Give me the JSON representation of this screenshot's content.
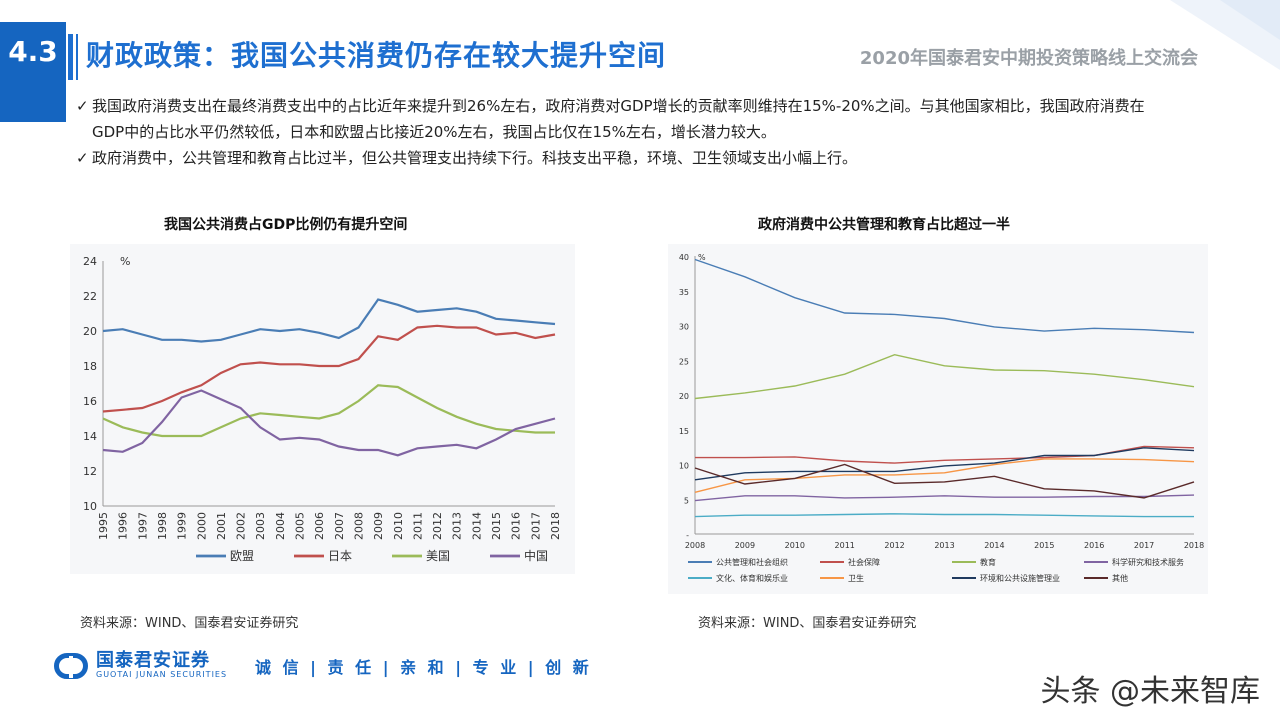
{
  "header": {
    "section_number": "4.3",
    "title": "财政政策：我国公共消费仍存在较大提升空间",
    "event": "2020年国泰君安中期投资策略线上交流会"
  },
  "bullets": [
    {
      "mark": "✓",
      "text": "我国政府消费支出在最终消费支出中的占比近年来提升到26%左右，政府消费对GDP增长的贡献率则维持在15%-20%之间。与其他国家相比，我国政府消费在GDP中的占比水平仍然较低，日本和欧盟占比接近20%左右，我国占比仅在15%左右，增长潜力较大。"
    },
    {
      "mark": "✓",
      "text": "政府消费中，公共管理和教育占比过半，但公共管理支出持续下行。科技支出平稳，环境、卫生领域支出小幅上行。"
    }
  ],
  "chart_data": [
    {
      "type": "line",
      "title": "我国公共消费占GDP比例仍有提升空间",
      "unit": "%",
      "x": [
        "1995",
        "1996",
        "1997",
        "1998",
        "1999",
        "2000",
        "2001",
        "2002",
        "2003",
        "2004",
        "2005",
        "2006",
        "2007",
        "2008",
        "2009",
        "2010",
        "2011",
        "2012",
        "2013",
        "2014",
        "2015",
        "2016",
        "2017",
        "2018"
      ],
      "ylim": [
        10,
        24
      ],
      "yticks": [
        10,
        12,
        14,
        16,
        18,
        20,
        22,
        24
      ],
      "legend_position": "bottom",
      "series": [
        {
          "name": "欧盟",
          "color": "#4a7db5",
          "values": [
            20.0,
            20.1,
            19.8,
            19.5,
            19.5,
            19.4,
            19.5,
            19.8,
            20.1,
            20.0,
            20.1,
            19.9,
            19.6,
            20.2,
            21.8,
            21.5,
            21.1,
            21.2,
            21.3,
            21.1,
            20.7,
            20.6,
            20.5,
            20.4
          ]
        },
        {
          "name": "日本",
          "color": "#c0504d",
          "values": [
            15.4,
            15.5,
            15.6,
            16.0,
            16.5,
            16.9,
            17.6,
            18.1,
            18.2,
            18.1,
            18.1,
            18.0,
            18.0,
            18.4,
            19.7,
            19.5,
            20.2,
            20.3,
            20.2,
            20.2,
            19.8,
            19.9,
            19.6,
            19.8
          ]
        },
        {
          "name": "美国",
          "color": "#9bbb59",
          "values": [
            15.0,
            14.5,
            14.2,
            14.0,
            14.0,
            14.0,
            14.5,
            15.0,
            15.3,
            15.2,
            15.1,
            15.0,
            15.3,
            16.0,
            16.9,
            16.8,
            16.2,
            15.6,
            15.1,
            14.7,
            14.4,
            14.3,
            14.2,
            14.2
          ]
        },
        {
          "name": "中国",
          "color": "#8064a2",
          "values": [
            13.2,
            13.1,
            13.6,
            14.8,
            16.2,
            16.6,
            16.1,
            15.6,
            14.5,
            13.8,
            13.9,
            13.8,
            13.4,
            13.2,
            13.2,
            12.9,
            13.3,
            13.4,
            13.5,
            13.3,
            13.8,
            14.4,
            14.7,
            15.0
          ]
        }
      ],
      "source": "资料来源：WIND、国泰君安证券研究"
    },
    {
      "type": "line",
      "title": "政府消费中公共管理和教育占比超过一半",
      "unit": "%",
      "x": [
        "2008",
        "2009",
        "2010",
        "2011",
        "2012",
        "2013",
        "2014",
        "2015",
        "2016",
        "2017",
        "2018"
      ],
      "ylim": [
        0,
        40
      ],
      "yticks": [
        0,
        5,
        10,
        15,
        20,
        25,
        30,
        35,
        40
      ],
      "ytick_labels": [
        "-",
        "5",
        "10",
        "15",
        "20",
        "25",
        "30",
        "35",
        "40"
      ],
      "legend_position": "bottom",
      "series": [
        {
          "name": "公共管理和社会组织",
          "color": "#4a7db5",
          "values": [
            39.5,
            37.0,
            34.0,
            31.8,
            31.6,
            31.0,
            29.8,
            29.2,
            29.6,
            29.4,
            29.0
          ]
        },
        {
          "name": "社会保障",
          "color": "#c0504d",
          "values": [
            11.0,
            11.0,
            11.1,
            10.5,
            10.2,
            10.6,
            10.8,
            11.0,
            11.3,
            12.6,
            12.4
          ]
        },
        {
          "name": "教育",
          "color": "#9bbb59",
          "values": [
            19.5,
            20.3,
            21.3,
            23.0,
            25.8,
            24.2,
            23.6,
            23.5,
            23.0,
            22.2,
            21.2
          ]
        },
        {
          "name": "科学研究和技术服务",
          "color": "#8064a2",
          "values": [
            4.8,
            5.5,
            5.5,
            5.2,
            5.3,
            5.5,
            5.3,
            5.3,
            5.4,
            5.4,
            5.6
          ]
        },
        {
          "name": "文化、体育和娱乐业",
          "color": "#4bacc6",
          "values": [
            2.5,
            2.7,
            2.7,
            2.8,
            2.9,
            2.8,
            2.8,
            2.7,
            2.6,
            2.5,
            2.5
          ]
        },
        {
          "name": "卫生",
          "color": "#f79646",
          "values": [
            6.0,
            7.8,
            8.0,
            8.5,
            8.5,
            8.8,
            10.0,
            10.8,
            10.8,
            10.7,
            10.4
          ]
        },
        {
          "name": "环境和公共设施管理业",
          "color": "#1f3a5f",
          "values": [
            7.8,
            8.8,
            9.0,
            9.0,
            9.0,
            9.8,
            10.2,
            11.3,
            11.3,
            12.4,
            12.0
          ]
        },
        {
          "name": "其他",
          "color": "#5a2a2a",
          "values": [
            9.5,
            7.2,
            8.0,
            10.0,
            7.3,
            7.5,
            8.3,
            6.5,
            6.2,
            5.2,
            7.5
          ]
        }
      ],
      "source": "资料来源：WIND、国泰君安证券研究"
    }
  ],
  "footer": {
    "logo_cn": "国泰君安证券",
    "logo_en": "GUOTAI JUNAN SECURITIES",
    "slogan": "诚 信 | 责 任 | 亲 和 | 专 业 | 创 新",
    "watermark": "头条 @未来智库"
  }
}
